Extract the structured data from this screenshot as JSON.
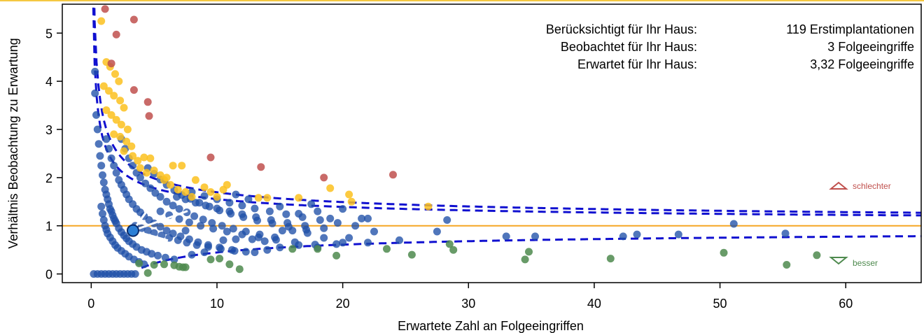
{
  "chart_data": {
    "type": "scatter",
    "xlabel": "Erwartete Zahl an Folgeeingriffen",
    "ylabel": "Verhältnis Beobachtung zu Erwartung",
    "xlim": [
      -2.3,
      66.0
    ],
    "ylim": [
      -0.18,
      5.6
    ],
    "x_ticks": [
      0,
      10,
      20,
      30,
      40,
      50,
      60
    ],
    "y_ticks": [
      0,
      1,
      2,
      3,
      4,
      5
    ],
    "reference_line": {
      "y": 1,
      "color": "#f5a623"
    },
    "info": [
      {
        "label": "Berücksichtigt für Ihr Haus:",
        "value": "119 Erstimplantationen"
      },
      {
        "label": "Beobachtet für Ihr Haus:",
        "value": "3 Folgeeingriffe"
      },
      {
        "label": "Erwartet für Ihr Haus:",
        "value": "3,32 Folgeeingriffe"
      }
    ],
    "legend": [
      {
        "label": "schlechter",
        "color": "#c0504d",
        "marker": "triangle-up"
      },
      {
        "label": "besser",
        "color": "#4e8a4e",
        "marker": "triangle-down"
      }
    ],
    "colors": {
      "blue": "#1f4fa8",
      "yellow": "#fcc11f",
      "red": "#c0504d",
      "green": "#4e8a4e",
      "highlight": "#2b7fd6",
      "curve": "#1010d0"
    },
    "highlight_point": {
      "x": 3.32,
      "y": 0.9
    },
    "series": [
      {
        "color": "red",
        "points": [
          [
            1.1,
            5.5
          ],
          [
            3.4,
            5.28
          ],
          [
            2.0,
            4.97
          ],
          [
            1.6,
            4.37
          ],
          [
            3.4,
            3.82
          ],
          [
            4.5,
            3.57
          ],
          [
            4.6,
            3.28
          ],
          [
            9.5,
            2.42
          ],
          [
            13.5,
            2.22
          ],
          [
            18.5,
            2.0
          ],
          [
            24.0,
            2.06
          ]
        ]
      },
      {
        "color": "yellow",
        "points": [
          [
            0.8,
            5.25
          ],
          [
            1.2,
            4.4
          ],
          [
            1.5,
            4.3
          ],
          [
            1.9,
            4.15
          ],
          [
            2.2,
            4.0
          ],
          [
            1.0,
            3.9
          ],
          [
            1.4,
            3.8
          ],
          [
            1.8,
            3.7
          ],
          [
            2.3,
            3.6
          ],
          [
            2.6,
            3.45
          ],
          [
            1.2,
            3.4
          ],
          [
            1.6,
            3.3
          ],
          [
            2.0,
            3.2
          ],
          [
            2.4,
            3.1
          ],
          [
            2.9,
            3.0
          ],
          [
            1.8,
            2.9
          ],
          [
            2.3,
            2.85
          ],
          [
            2.8,
            2.75
          ],
          [
            3.2,
            2.65
          ],
          [
            2.6,
            2.55
          ],
          [
            3.3,
            2.45
          ],
          [
            3.7,
            2.35
          ],
          [
            4.2,
            2.42
          ],
          [
            4.7,
            2.4
          ],
          [
            3.9,
            2.2
          ],
          [
            4.4,
            2.1
          ],
          [
            5.0,
            2.15
          ],
          [
            5.5,
            2.05
          ],
          [
            6.0,
            2.0
          ],
          [
            6.5,
            2.25
          ],
          [
            7.2,
            2.25
          ],
          [
            5.8,
            1.95
          ],
          [
            6.3,
            1.85
          ],
          [
            6.9,
            1.75
          ],
          [
            7.5,
            1.7
          ],
          [
            8.0,
            1.6
          ],
          [
            8.3,
            1.95
          ],
          [
            9.0,
            1.8
          ],
          [
            9.5,
            1.7
          ],
          [
            10.5,
            1.75
          ],
          [
            10.8,
            1.85
          ],
          [
            10.0,
            1.6
          ],
          [
            13.3,
            1.58
          ],
          [
            14.0,
            1.58
          ],
          [
            16.5,
            1.58
          ],
          [
            19.0,
            1.78
          ],
          [
            20.5,
            1.65
          ],
          [
            20.7,
            1.5
          ],
          [
            26.8,
            1.4
          ]
        ]
      },
      {
        "color": "green",
        "points": [
          [
            3.8,
            0.22
          ],
          [
            4.5,
            0.02
          ],
          [
            5.0,
            0.19
          ],
          [
            5.8,
            0.2
          ],
          [
            6.6,
            0.18
          ],
          [
            7.0,
            0.15
          ],
          [
            7.3,
            0.14
          ],
          [
            7.5,
            0.14
          ],
          [
            9.5,
            0.3
          ],
          [
            10.2,
            0.32
          ],
          [
            11.0,
            0.2
          ],
          [
            11.8,
            0.1
          ],
          [
            16.0,
            0.52
          ],
          [
            18.0,
            0.52
          ],
          [
            19.5,
            0.38
          ],
          [
            23.5,
            0.52
          ],
          [
            25.5,
            0.4
          ],
          [
            28.5,
            0.62
          ],
          [
            28.8,
            0.5
          ],
          [
            34.5,
            0.3
          ],
          [
            34.8,
            0.46
          ],
          [
            41.3,
            0.32
          ],
          [
            50.3,
            0.44
          ],
          [
            55.3,
            0.19
          ],
          [
            57.7,
            0.39
          ]
        ]
      },
      {
        "color": "blue",
        "points": [
          [
            0.2,
            0.0
          ],
          [
            0.5,
            0.0
          ],
          [
            0.8,
            0.0
          ],
          [
            1.1,
            0.0
          ],
          [
            1.4,
            0.0
          ],
          [
            1.7,
            0.0
          ],
          [
            2.0,
            0.0
          ],
          [
            2.3,
            0.0
          ],
          [
            2.6,
            0.0
          ],
          [
            2.9,
            0.0
          ],
          [
            3.2,
            0.0
          ],
          [
            3.5,
            0.0
          ],
          [
            0.3,
            4.2
          ],
          [
            0.3,
            3.75
          ],
          [
            0.4,
            3.3
          ],
          [
            0.5,
            3.0
          ],
          [
            0.6,
            2.7
          ],
          [
            0.7,
            2.45
          ],
          [
            0.8,
            2.25
          ],
          [
            0.9,
            2.05
          ],
          [
            1.0,
            1.9
          ],
          [
            1.1,
            1.75
          ],
          [
            1.2,
            1.65
          ],
          [
            1.3,
            1.55
          ],
          [
            1.4,
            1.45
          ],
          [
            1.5,
            1.35
          ],
          [
            1.6,
            1.3
          ],
          [
            1.7,
            1.22
          ],
          [
            1.8,
            1.15
          ],
          [
            1.9,
            1.1
          ],
          [
            2.0,
            1.05
          ],
          [
            2.2,
            0.95
          ],
          [
            2.4,
            0.87
          ],
          [
            2.6,
            0.8
          ],
          [
            2.8,
            0.74
          ],
          [
            3.0,
            0.68
          ],
          [
            3.3,
            0.62
          ],
          [
            3.6,
            0.56
          ],
          [
            4.0,
            0.5
          ],
          [
            4.4,
            0.46
          ],
          [
            4.8,
            0.42
          ],
          [
            5.3,
            0.38
          ],
          [
            5.9,
            0.34
          ],
          [
            6.6,
            0.3
          ],
          [
            1.2,
            2.8
          ],
          [
            1.4,
            2.6
          ],
          [
            1.6,
            2.4
          ],
          [
            1.8,
            2.25
          ],
          [
            2.0,
            2.1
          ],
          [
            2.2,
            1.95
          ],
          [
            2.4,
            1.85
          ],
          [
            2.6,
            1.75
          ],
          [
            2.8,
            1.65
          ],
          [
            3.0,
            1.55
          ],
          [
            3.3,
            1.45
          ],
          [
            3.6,
            1.35
          ],
          [
            3.9,
            1.28
          ],
          [
            4.2,
            1.2
          ],
          [
            4.6,
            1.12
          ],
          [
            5.0,
            1.05
          ],
          [
            5.5,
            0.98
          ],
          [
            6.0,
            0.9
          ],
          [
            6.5,
            0.84
          ],
          [
            7.1,
            0.78
          ],
          [
            7.8,
            0.72
          ],
          [
            8.5,
            0.66
          ],
          [
            9.3,
            0.6
          ],
          [
            10.2,
            0.55
          ],
          [
            11.2,
            0.5
          ],
          [
            12.3,
            0.46
          ],
          [
            2.4,
            2.8
          ],
          [
            2.7,
            2.6
          ],
          [
            3.0,
            2.4
          ],
          [
            3.3,
            2.25
          ],
          [
            3.6,
            2.1
          ],
          [
            3.9,
            2.0
          ],
          [
            4.3,
            1.88
          ],
          [
            4.7,
            1.78
          ],
          [
            5.1,
            1.68
          ],
          [
            5.5,
            1.6
          ],
          [
            6.0,
            1.5
          ],
          [
            6.5,
            1.42
          ],
          [
            7.0,
            1.35
          ],
          [
            7.6,
            1.28
          ],
          [
            8.2,
            1.2
          ],
          [
            8.9,
            1.13
          ],
          [
            9.6,
            1.06
          ],
          [
            10.4,
            1.0
          ],
          [
            11.3,
            0.94
          ],
          [
            12.3,
            0.88
          ],
          [
            13.4,
            0.82
          ],
          [
            14.6,
            0.76
          ],
          [
            4.5,
            2.2
          ],
          [
            5.0,
            2.08
          ],
          [
            5.5,
            1.96
          ],
          [
            6.0,
            1.85
          ],
          [
            6.6,
            1.74
          ],
          [
            7.2,
            1.64
          ],
          [
            7.9,
            1.56
          ],
          [
            8.6,
            1.48
          ],
          [
            9.4,
            1.4
          ],
          [
            10.2,
            1.32
          ],
          [
            11.1,
            1.25
          ],
          [
            12.1,
            1.18
          ],
          [
            13.2,
            1.11
          ],
          [
            14.4,
            1.05
          ],
          [
            15.7,
            0.98
          ],
          [
            17.1,
            0.92
          ],
          [
            6.8,
            1.6
          ],
          [
            7.5,
            1.55
          ],
          [
            8.3,
            1.48
          ],
          [
            9.1,
            1.42
          ],
          [
            10.0,
            1.36
          ],
          [
            11.0,
            1.3
          ],
          [
            12.0,
            1.24
          ],
          [
            13.1,
            1.18
          ],
          [
            14.3,
            1.12
          ],
          [
            15.6,
            1.06
          ],
          [
            17.0,
            1.0
          ],
          [
            18.5,
            0.95
          ],
          [
            3.5,
            1.0
          ],
          [
            4.0,
            0.95
          ],
          [
            4.5,
            0.9
          ],
          [
            5.0,
            0.85
          ],
          [
            5.6,
            0.8
          ],
          [
            6.2,
            0.75
          ],
          [
            6.9,
            0.7
          ],
          [
            7.6,
            0.65
          ],
          [
            8.4,
            0.6
          ],
          [
            9.3,
            0.56
          ],
          [
            10.3,
            0.52
          ],
          [
            11.4,
            0.48
          ],
          [
            5.5,
            1.3
          ],
          [
            6.2,
            1.22
          ],
          [
            7.0,
            1.14
          ],
          [
            7.8,
            1.07
          ],
          [
            8.7,
            1.0
          ],
          [
            9.7,
            0.94
          ],
          [
            10.8,
            0.88
          ],
          [
            12.0,
            0.82
          ],
          [
            13.3,
            0.76
          ],
          [
            14.7,
            0.71
          ],
          [
            16.2,
            0.66
          ],
          [
            17.8,
            0.61
          ],
          [
            8.0,
            1.7
          ],
          [
            9.0,
            1.62
          ],
          [
            10.0,
            1.55
          ],
          [
            11.0,
            1.48
          ],
          [
            12.0,
            1.42
          ],
          [
            13.0,
            1.36
          ],
          [
            14.2,
            1.3
          ],
          [
            15.5,
            1.24
          ],
          [
            16.8,
            1.18
          ],
          [
            18.2,
            1.12
          ],
          [
            19.6,
            1.06
          ],
          [
            21.0,
            1.0
          ],
          [
            0.8,
            1.4
          ],
          [
            0.9,
            1.25
          ],
          [
            1.0,
            1.12
          ],
          [
            1.1,
            1.0
          ],
          [
            1.2,
            0.92
          ],
          [
            1.3,
            0.84
          ],
          [
            1.5,
            0.76
          ],
          [
            1.7,
            0.68
          ],
          [
            1.9,
            0.6
          ],
          [
            2.1,
            0.54
          ],
          [
            2.4,
            0.48
          ],
          [
            2.7,
            0.42
          ],
          [
            3.0,
            0.36
          ],
          [
            3.4,
            0.3
          ],
          [
            3.8,
            0.25
          ],
          [
            4.2,
            0.2
          ],
          [
            15.0,
            1.4
          ],
          [
            16.5,
            1.25
          ],
          [
            17.5,
            1.45
          ],
          [
            18.0,
            1.3
          ],
          [
            19.0,
            1.15
          ],
          [
            20.0,
            1.35
          ],
          [
            21.5,
            1.15
          ],
          [
            22.0,
            1.15
          ],
          [
            12.5,
            1.55
          ],
          [
            11.5,
            1.65
          ],
          [
            13.0,
            0.45
          ],
          [
            14.0,
            0.5
          ],
          [
            15.0,
            0.55
          ],
          [
            16.5,
            0.6
          ],
          [
            18.0,
            0.55
          ],
          [
            19.5,
            0.62
          ],
          [
            20.5,
            0.75
          ],
          [
            22.0,
            0.65
          ],
          [
            22.5,
            0.88
          ],
          [
            24.5,
            0.7
          ],
          [
            27.5,
            0.88
          ],
          [
            28.3,
            1.12
          ],
          [
            33.0,
            0.78
          ],
          [
            35.3,
            0.78
          ],
          [
            42.3,
            0.78
          ],
          [
            43.4,
            0.82
          ],
          [
            46.7,
            0.82
          ],
          [
            51.1,
            1.04
          ],
          [
            55.2,
            0.84
          ],
          [
            7.5,
            0.9
          ],
          [
            8.0,
            0.4
          ],
          [
            9.0,
            0.45
          ],
          [
            10.5,
            0.7
          ],
          [
            11.5,
            0.72
          ],
          [
            12.8,
            0.72
          ],
          [
            13.8,
            0.68
          ],
          [
            15.2,
            0.9
          ],
          [
            16.0,
            0.9
          ],
          [
            17.2,
            0.85
          ],
          [
            18.5,
            0.75
          ],
          [
            20.0,
            0.65
          ]
        ]
      }
    ]
  }
}
